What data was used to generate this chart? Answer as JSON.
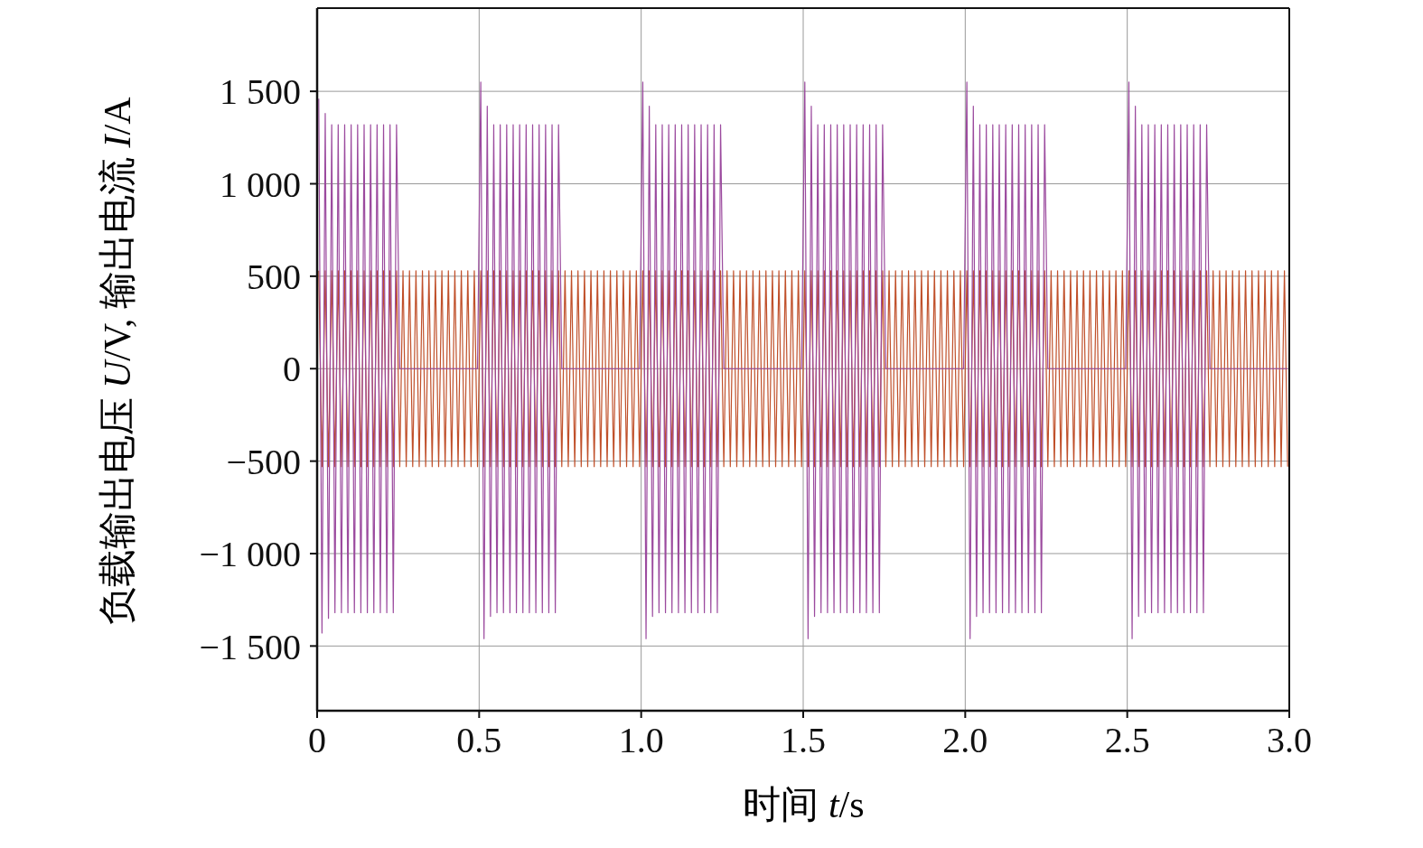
{
  "chart_data": {
    "type": "line",
    "xlabel": "时间 t/s",
    "ylabel": "负载输出电压 U/V, 输出电流 I/A",
    "xlim": [
      0,
      3
    ],
    "xticks": [
      0,
      0.5,
      {
        "value": 1,
        "label": "1.0"
      },
      1.5,
      {
        "value": 2,
        "label": "2.0"
      },
      2.5,
      {
        "value": 3,
        "label": "3.0"
      }
    ],
    "ylim": [
      -1850,
      1950
    ],
    "yticks": [
      {
        "value": -1500,
        "label": "−1 500"
      },
      {
        "value": -1000,
        "label": "−1 000"
      },
      {
        "value": -500,
        "label": "−500"
      },
      0,
      500,
      {
        "value": 1000,
        "label": "1 000"
      },
      {
        "value": 1500,
        "label": "1 500"
      }
    ],
    "grid": true,
    "series": [
      {
        "color": "#c0502a",
        "x": [
          0.005,
          0.015,
          0.025,
          0.035,
          0.045,
          0.055,
          0.065,
          0.075,
          0.085,
          0.095,
          0.105,
          0.115,
          0.125,
          0.135,
          0.145,
          0.155,
          0.165,
          0.175,
          0.185,
          0.195,
          0.205,
          0.215,
          0.225,
          0.235,
          0.245,
          0.255,
          0.265,
          0.275,
          0.285,
          0.295,
          0.305,
          0.315,
          0.325,
          0.335,
          0.345,
          0.355,
          0.365,
          0.375,
          0.385,
          0.395,
          0.405,
          0.415,
          0.425,
          0.435,
          0.445,
          0.455,
          0.465,
          0.475,
          0.485,
          0.495,
          0.505,
          0.515,
          0.525,
          0.535,
          0.545,
          0.555,
          0.565,
          0.575,
          0.585,
          0.595,
          0.605,
          0.615,
          0.625,
          0.635,
          0.645,
          0.655,
          0.665,
          0.675,
          0.685,
          0.695,
          0.705,
          0.715,
          0.725,
          0.735,
          0.745,
          0.755,
          0.765,
          0.775,
          0.785,
          0.795,
          0.805,
          0.815,
          0.825,
          0.835,
          0.845,
          0.855,
          0.865,
          0.875,
          0.885,
          0.895,
          0.905,
          0.915,
          0.925,
          0.935,
          0.945,
          0.955,
          0.965,
          0.975,
          0.985,
          0.995,
          1.005,
          1.015,
          1.025,
          1.035,
          1.045,
          1.055,
          1.065,
          1.075,
          1.085,
          1.095,
          1.105,
          1.115,
          1.125,
          1.135,
          1.145,
          1.155,
          1.165,
          1.175,
          1.185,
          1.195,
          1.205,
          1.215,
          1.225,
          1.235,
          1.245,
          1.255,
          1.265,
          1.275,
          1.285,
          1.295,
          1.305,
          1.315,
          1.325,
          1.335,
          1.345,
          1.355,
          1.365,
          1.375,
          1.385,
          1.395,
          1.405,
          1.415,
          1.425,
          1.435,
          1.445,
          1.455,
          1.465,
          1.475,
          1.485,
          1.495,
          1.505,
          1.515,
          1.525,
          1.535,
          1.545,
          1.555,
          1.565,
          1.575,
          1.585,
          1.595,
          1.605,
          1.615,
          1.625,
          1.635,
          1.645,
          1.655,
          1.665,
          1.675,
          1.685,
          1.695,
          1.705,
          1.715,
          1.725,
          1.735,
          1.745,
          1.755,
          1.765,
          1.775,
          1.785,
          1.795,
          1.805,
          1.815,
          1.825,
          1.835,
          1.845,
          1.855,
          1.865,
          1.875,
          1.885,
          1.895,
          1.905,
          1.915,
          1.925,
          1.935,
          1.945,
          1.955,
          1.965,
          1.975,
          1.985,
          1.995,
          2.005,
          2.015,
          2.025,
          2.035,
          2.045,
          2.055,
          2.065,
          2.075,
          2.085,
          2.095,
          2.105,
          2.115,
          2.125,
          2.135,
          2.145,
          2.155,
          2.165,
          2.175,
          2.185,
          2.195,
          2.205,
          2.215,
          2.225,
          2.235,
          2.245,
          2.255,
          2.265,
          2.275,
          2.285,
          2.295,
          2.305,
          2.315,
          2.325,
          2.335,
          2.345,
          2.355,
          2.365,
          2.375,
          2.385,
          2.395,
          2.405,
          2.415,
          2.425,
          2.435,
          2.445,
          2.455,
          2.465,
          2.475,
          2.485,
          2.495,
          2.505,
          2.515,
          2.525,
          2.535,
          2.545,
          2.555,
          2.565,
          2.575,
          2.585,
          2.595,
          2.605,
          2.615,
          2.625,
          2.635,
          2.645,
          2.655,
          2.665,
          2.675,
          2.685,
          2.695,
          2.705,
          2.715,
          2.725,
          2.735,
          2.745,
          2.755,
          2.765,
          2.775,
          2.785,
          2.795,
          2.805,
          2.815,
          2.825,
          2.835,
          2.845,
          2.855,
          2.865,
          2.875,
          2.885,
          2.895,
          2.905,
          2.915,
          2.925,
          2.935,
          2.945,
          2.955,
          2.965,
          2.975,
          2.985,
          2.995
        ],
        "values": [
          530,
          -530,
          530,
          -530,
          530,
          -530,
          530,
          -530,
          530,
          -530,
          530,
          -530,
          530,
          -530,
          530,
          -530,
          530,
          -530,
          530,
          -530,
          530,
          -530,
          530,
          -530,
          530,
          -530,
          530,
          -530,
          530,
          -530,
          530,
          -530,
          530,
          -530,
          530,
          -530,
          530,
          -530,
          530,
          -530,
          530,
          -530,
          530,
          -530,
          530,
          -530,
          530,
          -530,
          530,
          -530,
          530,
          -530,
          530,
          -530,
          530,
          -530,
          530,
          -530,
          530,
          -530,
          530,
          -530,
          530,
          -530,
          530,
          -530,
          530,
          -530,
          530,
          -530,
          530,
          -530,
          530,
          -530,
          530,
          -530,
          530,
          -530,
          530,
          -530,
          530,
          -530,
          530,
          -530,
          530,
          -530,
          530,
          -530,
          530,
          -530,
          530,
          -530,
          530,
          -530,
          530,
          -530,
          530,
          -530,
          530,
          -530,
          530,
          -530,
          530,
          -530,
          530,
          -530,
          530,
          -530,
          530,
          -530,
          530,
          -530,
          530,
          -530,
          530,
          -530,
          530,
          -530,
          530,
          -530,
          530,
          -530,
          530,
          -530,
          530,
          -530,
          530,
          -530,
          530,
          -530,
          530,
          -530,
          530,
          -530,
          530,
          -530,
          530,
          -530,
          530,
          -530,
          530,
          -530,
          530,
          -530,
          530,
          -530,
          530,
          -530,
          530,
          -530,
          530,
          -530,
          530,
          -530,
          530,
          -530,
          530,
          -530,
          530,
          -530,
          530,
          -530,
          530,
          -530,
          530,
          -530,
          530,
          -530,
          530,
          -530,
          530,
          -530,
          530,
          -530,
          530,
          -530,
          530,
          -530,
          530,
          -530,
          530,
          -530,
          530,
          -530,
          530,
          -530,
          530,
          -530,
          530,
          -530,
          530,
          -530,
          530,
          -530,
          530,
          -530,
          530,
          -530,
          530,
          -530,
          530,
          -530,
          530,
          -530,
          530,
          -530,
          530,
          -530,
          530,
          -530,
          530,
          -530,
          530,
          -530,
          530,
          -530,
          530,
          -530,
          530,
          -530,
          530,
          -530,
          530,
          -530,
          530,
          -530,
          530,
          -530,
          530,
          -530,
          530,
          -530,
          530,
          -530,
          530,
          -530,
          530,
          -530,
          530,
          -530,
          530,
          -530,
          530,
          -530,
          530,
          -530,
          530,
          -530,
          530,
          -530,
          530,
          -530,
          530,
          -530,
          530,
          -530,
          530,
          -530,
          530,
          -530,
          530,
          -530,
          530,
          -530,
          530,
          -530,
          530,
          -530,
          530,
          -530,
          530,
          -530,
          530,
          -530,
          530,
          -530,
          530,
          -530,
          530,
          -530,
          530,
          -530,
          530,
          -530,
          530,
          -530,
          530,
          -530,
          530,
          -530,
          530,
          -530,
          530,
          -530,
          530,
          -530,
          530,
          -530,
          530,
          -530
        ]
      },
      {
        "color": "#9b4a9e",
        "x": [
          0.005,
          0.015,
          0.025,
          0.035,
          0.045,
          0.055,
          0.065,
          0.075,
          0.085,
          0.095,
          0.105,
          0.115,
          0.125,
          0.135,
          0.145,
          0.155,
          0.165,
          0.175,
          0.185,
          0.195,
          0.205,
          0.215,
          0.225,
          0.235,
          0.245,
          0.255,
          0.495,
          0.505,
          0.515,
          0.525,
          0.535,
          0.545,
          0.555,
          0.565,
          0.575,
          0.585,
          0.595,
          0.605,
          0.615,
          0.625,
          0.635,
          0.645,
          0.655,
          0.665,
          0.675,
          0.685,
          0.695,
          0.705,
          0.715,
          0.725,
          0.735,
          0.745,
          0.755,
          0.995,
          1.005,
          1.015,
          1.025,
          1.035,
          1.045,
          1.055,
          1.065,
          1.075,
          1.085,
          1.095,
          1.105,
          1.115,
          1.125,
          1.135,
          1.145,
          1.155,
          1.165,
          1.175,
          1.185,
          1.195,
          1.205,
          1.215,
          1.225,
          1.235,
          1.245,
          1.255,
          1.495,
          1.505,
          1.515,
          1.525,
          1.535,
          1.545,
          1.555,
          1.565,
          1.575,
          1.585,
          1.595,
          1.605,
          1.615,
          1.625,
          1.635,
          1.645,
          1.655,
          1.665,
          1.675,
          1.685,
          1.695,
          1.705,
          1.715,
          1.725,
          1.735,
          1.745,
          1.755,
          1.995,
          2.005,
          2.015,
          2.025,
          2.035,
          2.045,
          2.055,
          2.065,
          2.075,
          2.085,
          2.095,
          2.105,
          2.115,
          2.125,
          2.135,
          2.145,
          2.155,
          2.165,
          2.175,
          2.185,
          2.195,
          2.205,
          2.215,
          2.225,
          2.235,
          2.245,
          2.255,
          2.495,
          2.505,
          2.515,
          2.525,
          2.535,
          2.545,
          2.555,
          2.565,
          2.575,
          2.585,
          2.595,
          2.605,
          2.615,
          2.625,
          2.635,
          2.645,
          2.655,
          2.665,
          2.675,
          2.685,
          2.695,
          2.705,
          2.715,
          2.725,
          2.735,
          2.745,
          2.755,
          2.995
        ],
        "values": [
          1460,
          -1430,
          1380,
          -1350,
          1320,
          -1320,
          1320,
          -1320,
          1320,
          -1320,
          1320,
          -1320,
          1320,
          -1320,
          1320,
          -1320,
          1320,
          -1320,
          1320,
          -1320,
          1320,
          -1320,
          1320,
          -1320,
          1320,
          0,
          0,
          1550,
          -1460,
          1420,
          -1340,
          1320,
          -1320,
          1320,
          -1320,
          1320,
          -1320,
          1320,
          -1320,
          1320,
          -1320,
          1320,
          -1320,
          1320,
          -1320,
          1320,
          -1320,
          1320,
          -1320,
          1320,
          -1320,
          1320,
          0,
          0,
          1550,
          -1460,
          1420,
          -1340,
          1320,
          -1320,
          1320,
          -1320,
          1320,
          -1320,
          1320,
          -1320,
          1320,
          -1320,
          1320,
          -1320,
          1320,
          -1320,
          1320,
          -1320,
          1320,
          -1320,
          1320,
          -1320,
          1320,
          0,
          0,
          1550,
          -1460,
          1420,
          -1340,
          1320,
          -1320,
          1320,
          -1320,
          1320,
          -1320,
          1320,
          -1320,
          1320,
          -1320,
          1320,
          -1320,
          1320,
          -1320,
          1320,
          -1320,
          1320,
          -1320,
          1320,
          -1320,
          1320,
          0,
          0,
          1550,
          -1460,
          1420,
          -1340,
          1320,
          -1320,
          1320,
          -1320,
          1320,
          -1320,
          1320,
          -1320,
          1320,
          -1320,
          1320,
          -1320,
          1320,
          -1320,
          1320,
          -1320,
          1320,
          -1320,
          1320,
          -1320,
          1320,
          0,
          0,
          1550,
          -1460,
          1420,
          -1340,
          1320,
          -1320,
          1320,
          -1320,
          1320,
          -1320,
          1320,
          -1320,
          1320,
          -1320,
          1320,
          -1320,
          1320,
          -1320,
          1320,
          -1320,
          1320,
          -1320,
          1320,
          -1320,
          1320,
          0,
          0
        ]
      }
    ]
  }
}
